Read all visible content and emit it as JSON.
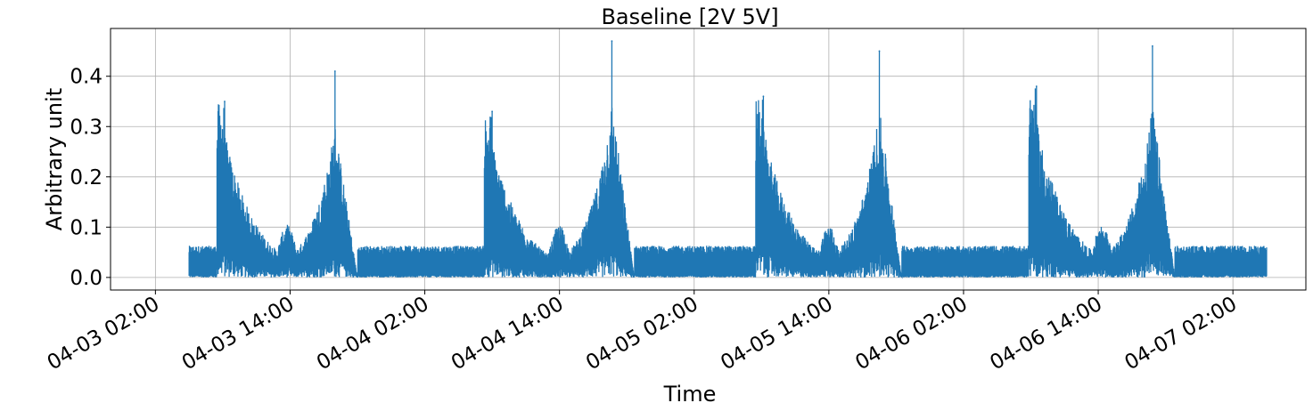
{
  "chart_data": {
    "type": "line",
    "title": "Baseline [2V 5V]",
    "xlabel": "Time",
    "ylabel": "Arbitrary unit",
    "ylim": [
      -0.025,
      0.495
    ],
    "xlim_hours": [
      -2.0,
      104.5
    ],
    "x_ticks": [
      "04-03 02:00",
      "04-03 14:00",
      "04-04 02:00",
      "04-04 14:00",
      "04-05 02:00",
      "04-05 14:00",
      "04-06 02:00",
      "04-06 14:00",
      "04-07 02:00"
    ],
    "y_ticks": [
      "0.0",
      "0.1",
      "0.2",
      "0.3",
      "0.4"
    ],
    "y_tick_values": [
      0.0,
      0.1,
      0.2,
      0.3,
      0.4
    ],
    "grid": true,
    "series": [
      {
        "color": "#1f77b4",
        "x_start": "04-03 05:00",
        "x_end": "04-07 05:00",
        "baseline_level": [
          0.0,
          0.06
        ],
        "peaks": [
          {
            "x": "04-03 08:10",
            "y": 0.35
          },
          {
            "x": "04-03 18:00",
            "y": 0.41
          },
          {
            "x": "04-04 08:00",
            "y": 0.33
          },
          {
            "x": "04-04 18:40",
            "y": 0.47
          },
          {
            "x": "04-05 08:10",
            "y": 0.36
          },
          {
            "x": "04-05 18:30",
            "y": 0.45
          },
          {
            "x": "04-06 08:30",
            "y": 0.38
          },
          {
            "x": "04-06 18:50",
            "y": 0.46
          }
        ]
      }
    ]
  }
}
